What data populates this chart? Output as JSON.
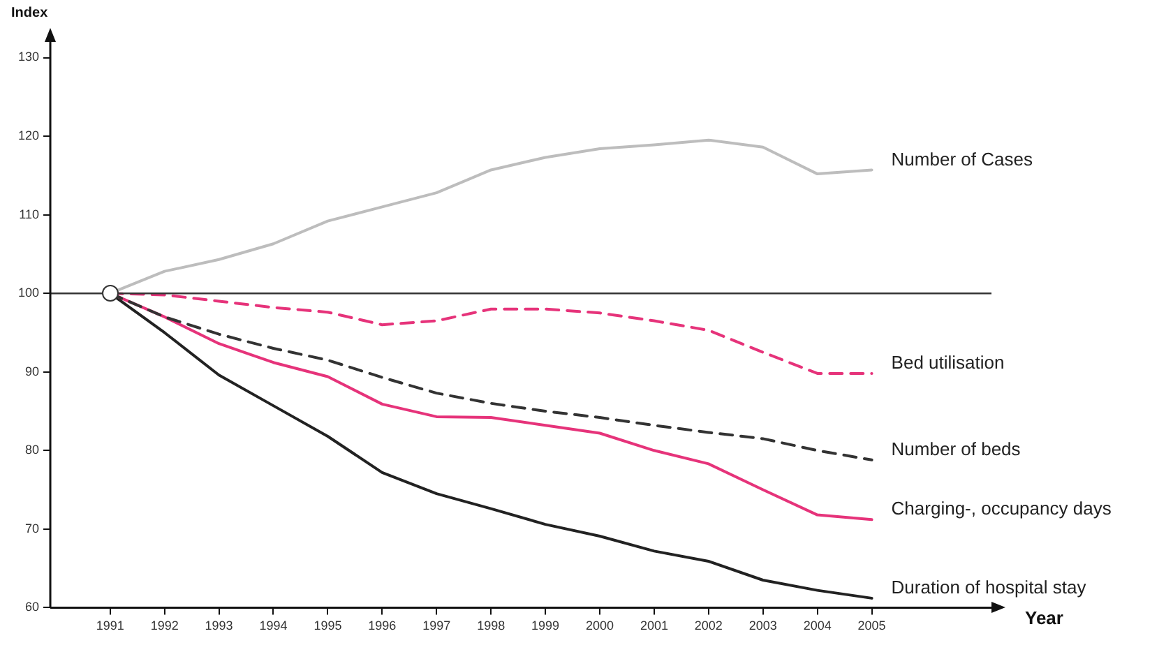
{
  "chart_data": {
    "type": "line",
    "xlabel": "Year",
    "ylabel": "Index",
    "x": [
      1991,
      1992,
      1993,
      1994,
      1995,
      1996,
      1997,
      1998,
      1999,
      2000,
      2001,
      2002,
      2003,
      2004,
      2005
    ],
    "xlim": [
      1989.9,
      2007.2
    ],
    "xticks": [
      1991,
      1992,
      1993,
      1994,
      1995,
      1996,
      1997,
      1998,
      1999,
      2000,
      2001,
      2002,
      2003,
      2004,
      2005
    ],
    "ylim": [
      60,
      132
    ],
    "yticks": [
      60,
      70,
      80,
      90,
      100,
      110,
      120,
      130
    ],
    "grid": false,
    "legend": false,
    "marker": "none",
    "ref_lines": [
      {
        "axis": "y",
        "value": 100,
        "color": "#333333"
      }
    ],
    "series": [
      {
        "name": "Number of Cases",
        "color": "#bdbdbd",
        "line_style": "solid",
        "values": [
          100,
          102.8,
          104.3,
          106.3,
          109.2,
          111,
          112.8,
          115.7,
          117.3,
          118.4,
          118.9,
          119.5,
          118.6,
          115.2,
          115.7
        ]
      },
      {
        "name": "Bed utilisation",
        "color": "#e6337a",
        "line_style": "dashed",
        "values": [
          100,
          99.8,
          99,
          98.2,
          97.6,
          96,
          96.5,
          98,
          98,
          97.5,
          96.5,
          95.3,
          92.5,
          89.8,
          89.8
        ]
      },
      {
        "name": "Number of beds",
        "color": "#333333",
        "line_style": "dashed",
        "values": [
          100,
          97,
          94.8,
          93,
          91.5,
          89.3,
          87.3,
          86,
          85,
          84.2,
          83.2,
          82.3,
          81.5,
          80,
          78.8
        ]
      },
      {
        "name": "Charging-, occupancy days",
        "color": "#e6337a",
        "line_style": "solid",
        "values": [
          100,
          97,
          93.6,
          91.2,
          89.4,
          85.9,
          84.3,
          84.2,
          83.2,
          82.2,
          80,
          78.3,
          75,
          71.8,
          71.2
        ]
      },
      {
        "name": "Duration of hospital stay",
        "color": "#222222",
        "line_style": "solid",
        "values": [
          100,
          95,
          89.6,
          85.7,
          81.8,
          77.2,
          74.5,
          72.6,
          70.6,
          69.1,
          67.2,
          65.9,
          63.5,
          62.2,
          61.2
        ]
      }
    ]
  }
}
